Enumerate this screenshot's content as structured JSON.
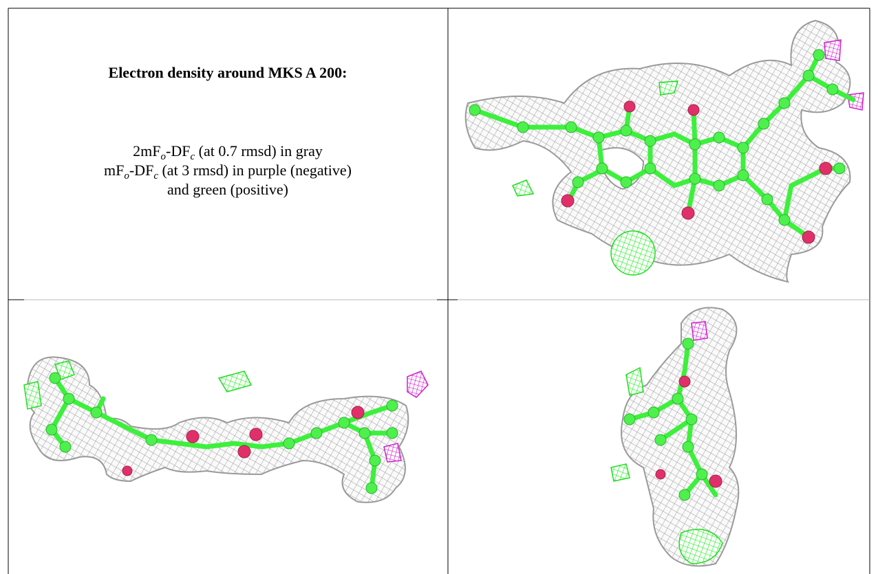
{
  "panel": {
    "title": "Electron density around MKS A 200:",
    "lines": [
      [
        "2mF",
        "o",
        "-DF",
        "c",
        " (at 0.7 rmsd) in gray"
      ],
      [
        "mF",
        "o",
        "-DF",
        "c",
        " (at 3 rmsd) in purple (negative)"
      ],
      [
        "and green (positive)"
      ]
    ]
  }
}
